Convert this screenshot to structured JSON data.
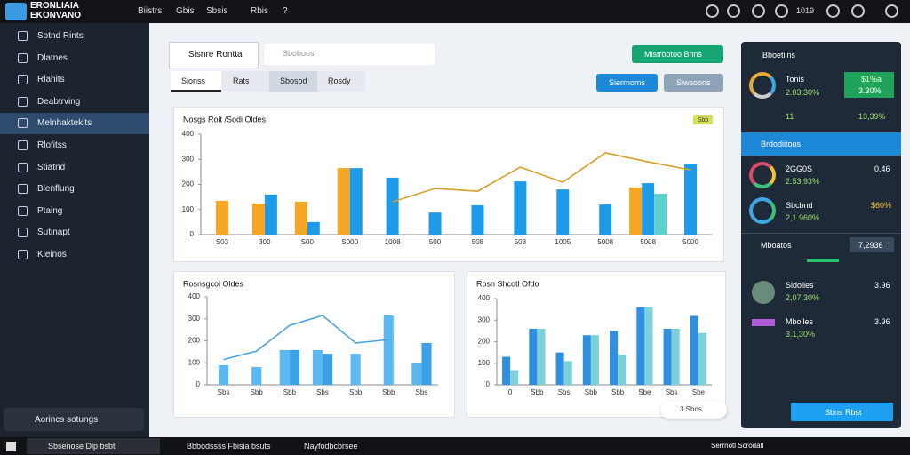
{
  "header": {
    "logo": [
      "ERONLIAIA",
      "EKONVANO"
    ],
    "nav": [
      "Biistrs",
      "Gbis",
      "Sbsis",
      "Rbis",
      "?"
    ],
    "right": [
      "1019"
    ]
  },
  "sidebar": {
    "items": [
      "Sotnd Rints",
      "Dlatnes",
      "Rlahits",
      "Deabtrving",
      "Melnhaktekits",
      "Rlofitss",
      "Stiatnd",
      "Blenflung",
      "Ptaing",
      "Sutinapt",
      "Kleinos"
    ],
    "footer": "Aorincs sotungs"
  },
  "toolbar": {
    "title": "Sisnre Rontta",
    "search": "Sboboos",
    "tabs": [
      "Sionss",
      "Rats",
      "Sbosod",
      "Rosdy"
    ],
    "buttons": [
      "Mistrootoo Bnns",
      "Sierrnoms",
      "Siwsoons"
    ]
  },
  "panel": {
    "title": "Bboetiins",
    "stat1": {
      "label": "Tonis",
      "value": "2.03,30%",
      "badge": "$1%a",
      "badge_value": "3.30%",
      "count": "11",
      "count_value": "13,39%"
    },
    "section2": "Brdodiitoos",
    "stat2": {
      "label": "2GG0S",
      "value": "2.53,93%",
      "side": "0.46"
    },
    "stat3": {
      "label": "Sbcbnd",
      "value": "2,1.960%",
      "side": "$60%"
    },
    "section3": "Mboatos",
    "section3_side": "7,2936",
    "stat4": {
      "label": "Sldolies",
      "value": "2,07,30%",
      "side": "3.96"
    },
    "stat5": {
      "label": "Mboiles",
      "value": "3.1,30%",
      "side": "3.96"
    },
    "button": "Sbns Rbst"
  },
  "float_label": "3 Sbos",
  "taskbar": {
    "items": [
      "Sbsenose Dlp bsbt",
      "Bbbodssss Fbisia bsuts",
      "Nayfodbcbrsee"
    ],
    "right": "Serrnotl Scrodatl"
  },
  "chart_data": [
    {
      "type": "bar",
      "title": "Nosgs Roit /Sodi Oldes",
      "badge": "Sbb",
      "categories": [
        "S03",
        "300",
        "S00",
        "S000",
        "1008",
        "500",
        "508",
        "508",
        "1005",
        "5008",
        "5008",
        "5000"
      ],
      "ylim": [
        0,
        400
      ],
      "yticks": [
        400,
        300,
        200,
        100,
        0
      ],
      "series": [
        {
          "type": "bar",
          "color": "#f5a623",
          "values": [
            135,
            124,
            131,
            265,
            null,
            null,
            null,
            null,
            null,
            null,
            188,
            null
          ]
        },
        {
          "type": "bar",
          "color": "#1e9be8",
          "values": [
            null,
            160,
            50,
            265,
            227,
            88,
            117,
            212,
            180,
            120,
            205,
            283
          ]
        },
        {
          "type": "bar",
          "color": "#5fd0d0",
          "values": [
            null,
            null,
            null,
            null,
            null,
            null,
            null,
            null,
            null,
            null,
            163,
            null
          ]
        },
        {
          "type": "line",
          "color": "#d4a12a",
          "values": [
            null,
            null,
            null,
            null,
            131,
            184,
            173,
            269,
            209,
            326,
            290,
            258
          ]
        }
      ]
    },
    {
      "type": "bar",
      "title": "Rosnsgcoi Oldes",
      "categories": [
        "Sbs",
        "Sbb",
        "Sbb",
        "Sbs",
        "Sbb",
        "Sbb",
        "Sbs"
      ],
      "ylim": [
        0,
        400
      ],
      "yticks": [
        400,
        300,
        200,
        100,
        0
      ],
      "series": [
        {
          "type": "bar",
          "color": "#5bb8f0",
          "values": [
            89,
            81,
            158,
            158,
            141,
            315,
            101
          ]
        },
        {
          "type": "bar",
          "color": "#3aa0e8",
          "values": [
            null,
            null,
            158,
            141,
            null,
            null,
            190
          ]
        },
        {
          "type": "line",
          "color": "#4aa3d8",
          "values": [
            115,
            153,
            270,
            315,
            190,
            205,
            null
          ]
        }
      ]
    },
    {
      "type": "bar",
      "title": "Rosn Shcotl Ofdo",
      "categories": [
        "0",
        "Sbb",
        "Sbs",
        "Sbb",
        "Sbb",
        "Sbe",
        "Sbs",
        "Sbe"
      ],
      "ylim": [
        0,
        400
      ],
      "yticks": [
        400,
        300,
        200,
        100,
        0
      ],
      "series": [
        {
          "type": "bar",
          "color": "#2f8fe0",
          "values": [
            130,
            260,
            150,
            230,
            250,
            360,
            260,
            320
          ]
        },
        {
          "type": "bar",
          "color": "#7ed0d8",
          "values": [
            68,
            260,
            110,
            230,
            140,
            360,
            260,
            240
          ]
        }
      ]
    }
  ]
}
